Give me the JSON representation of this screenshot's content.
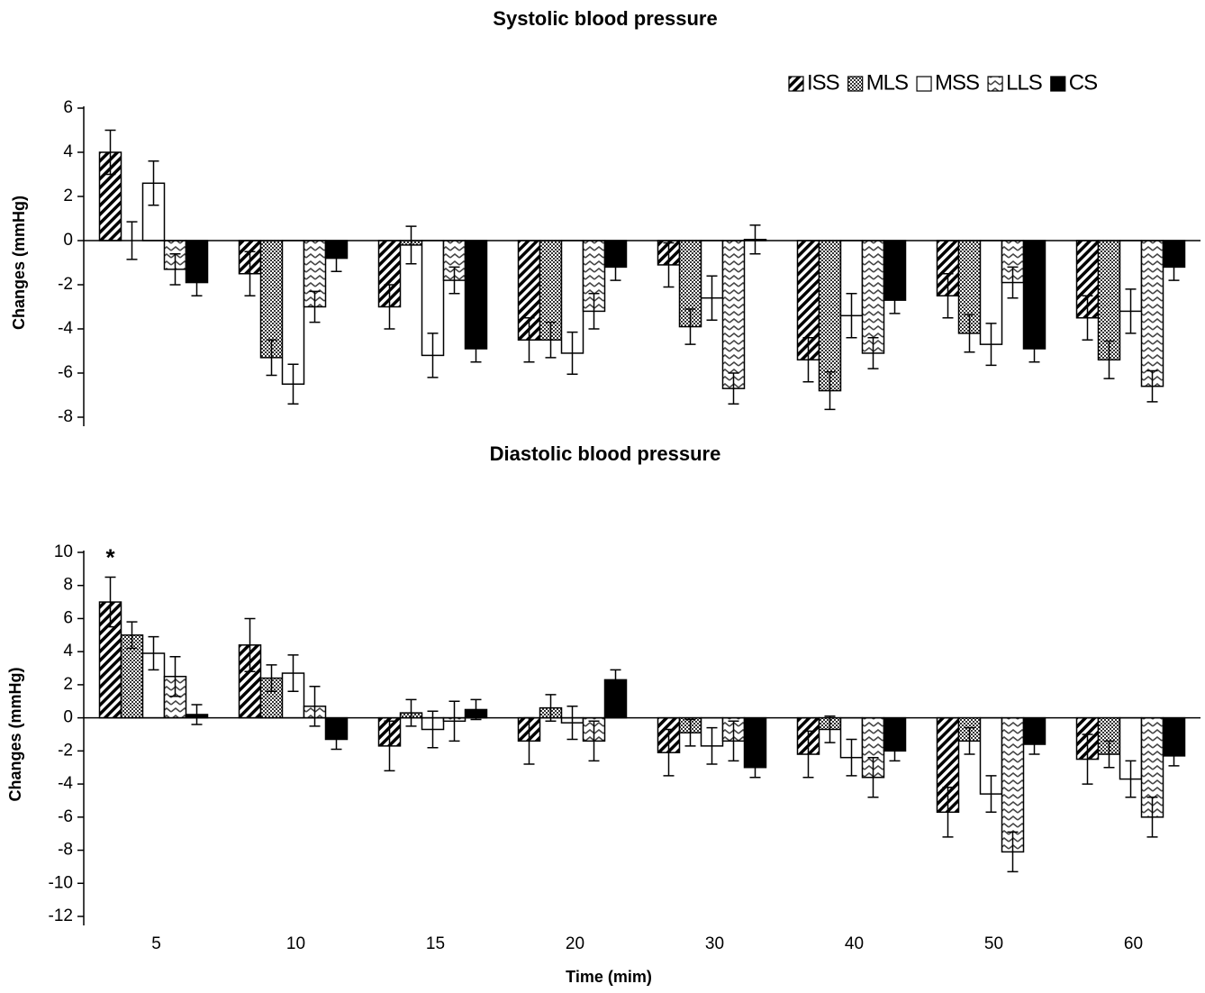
{
  "chart_data": [
    {
      "type": "bar",
      "title": "Systolic blood pressure",
      "y_label": "Changes (mmHg)",
      "categories": [
        null,
        null,
        null,
        null,
        null,
        null,
        null,
        null
      ],
      "ylim": [
        -8,
        6
      ],
      "yticks": [
        -8,
        -6,
        -4,
        -2,
        0,
        2,
        4,
        6
      ],
      "legend": "top-right",
      "series": [
        {
          "name": "ISS",
          "color": "#000000",
          "pattern": "diagonal",
          "values": [
            4,
            -1.5,
            -3,
            -4.5,
            -1.1,
            -5.4,
            -2.5,
            -3.5
          ],
          "errors": [
            1,
            1,
            1,
            1,
            1,
            1,
            1,
            1
          ]
        },
        {
          "name": "MLS",
          "color": "#555555",
          "pattern": "checker",
          "values": [
            0,
            -5.3,
            -0.2,
            -4.5,
            -3.9,
            -6.8,
            -4.2,
            -5.4
          ],
          "errors": [
            0.85,
            0.8,
            0.85,
            0.8,
            0.8,
            0.85,
            0.85,
            0.85
          ]
        },
        {
          "name": "MSS",
          "color": "#ffffff",
          "pattern": "none",
          "values": [
            2.6,
            -6.5,
            -5.2,
            -5.1,
            -2.6,
            -3.4,
            -4.7,
            -3.2
          ],
          "errors": [
            1,
            0.9,
            1,
            0.95,
            1,
            1,
            0.95,
            1
          ]
        },
        {
          "name": "LLS",
          "color": "#777777",
          "pattern": "zigzag",
          "values": [
            -1.3,
            -3,
            -1.8,
            -3.2,
            -6.7,
            -5.1,
            -1.9,
            -6.6
          ],
          "errors": [
            0.7,
            0.7,
            0.6,
            0.8,
            0.7,
            0.7,
            0.7,
            0.7
          ]
        },
        {
          "name": "CS",
          "color": "#000000",
          "pattern": "solid",
          "values": [
            -1.9,
            -0.8,
            -4.9,
            -1.2,
            0.05,
            -2.7,
            -4.9,
            -1.2
          ],
          "errors": [
            0.6,
            0.6,
            0.6,
            0.6,
            0.65,
            0.6,
            0.6,
            0.6
          ]
        }
      ]
    },
    {
      "type": "bar",
      "title": "Diastolic blood pressure",
      "y_label": "Changes (mmHg)",
      "x_label": "Time (mim)",
      "categories": [
        "5",
        "10",
        "15",
        "20",
        "30",
        "40",
        "50",
        "60"
      ],
      "ylim": [
        -12,
        10
      ],
      "yticks": [
        -12,
        -10,
        -8,
        -6,
        -4,
        -2,
        0,
        2,
        4,
        6,
        8,
        10
      ],
      "series": [
        {
          "name": "ISS",
          "color": "#000000",
          "pattern": "diagonal",
          "values": [
            7,
            4.4,
            -1.7,
            -1.4,
            -2.1,
            -2.2,
            -5.7,
            -2.5
          ],
          "errors": [
            1.5,
            1.6,
            1.5,
            1.4,
            1.4,
            1.4,
            1.5,
            1.5
          ],
          "annotations": [
            "*",
            null,
            null,
            null,
            null,
            null,
            null,
            null
          ]
        },
        {
          "name": "MLS",
          "color": "#555555",
          "pattern": "checker",
          "values": [
            5,
            2.4,
            0.3,
            0.6,
            -0.9,
            -0.7,
            -1.4,
            -2.2
          ],
          "errors": [
            0.8,
            0.8,
            0.8,
            0.8,
            0.8,
            0.8,
            0.8,
            0.8
          ]
        },
        {
          "name": "MSS",
          "color": "#ffffff",
          "pattern": "none",
          "values": [
            3.9,
            2.7,
            -0.7,
            -0.3,
            -1.7,
            -2.4,
            -4.6,
            -3.7
          ],
          "errors": [
            1,
            1.1,
            1.1,
            1,
            1.1,
            1.1,
            1.1,
            1.1
          ]
        },
        {
          "name": "LLS",
          "color": "#777777",
          "pattern": "zigzag",
          "values": [
            2.5,
            0.7,
            -0.2,
            -1.4,
            -1.4,
            -3.6,
            -8.1,
            -6
          ],
          "errors": [
            1.2,
            1.2,
            1.2,
            1.2,
            1.2,
            1.2,
            1.2,
            1.2
          ]
        },
        {
          "name": "CS",
          "color": "#000000",
          "pattern": "solid",
          "values": [
            0.2,
            -1.3,
            0.5,
            2.3,
            -3,
            -2,
            -1.6,
            -2.3
          ],
          "errors": [
            0.6,
            0.6,
            0.6,
            0.6,
            0.6,
            0.6,
            0.6,
            0.6
          ]
        }
      ]
    }
  ]
}
